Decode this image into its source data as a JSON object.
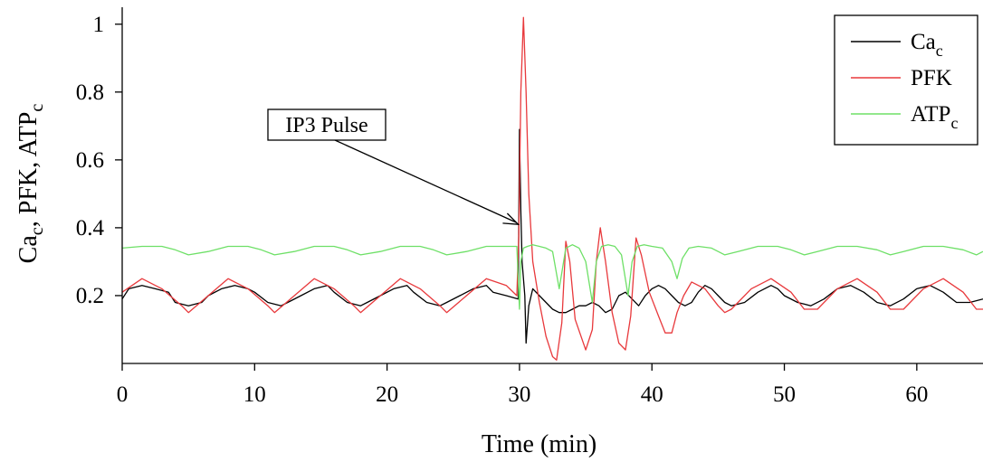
{
  "chart_data": {
    "type": "line",
    "xlabel": "Time (min)",
    "ylabel": {
      "parts": [
        {
          "t": "Ca"
        },
        {
          "t": "c",
          "sub": true
        },
        {
          "t": ", PFK, ATP"
        },
        {
          "t": "c",
          "sub": true
        }
      ]
    },
    "xlim": [
      0,
      65
    ],
    "ylim": [
      0,
      1.05
    ],
    "xticks": [
      0,
      10,
      20,
      30,
      40,
      50,
      60
    ],
    "xtick_labels": [
      "0",
      "10",
      "20",
      "30",
      "40",
      "50",
      "60"
    ],
    "yticks": [
      0.2,
      0.4,
      0.6,
      0.8,
      1.0
    ],
    "ytick_labels": [
      "0.2",
      "0.4",
      "0.6",
      "0.8",
      "1"
    ],
    "legend_position": "top-right",
    "annotation": {
      "text": "IP3 Pulse",
      "points_to": [
        29.9,
        0.41
      ]
    },
    "series": [
      {
        "name": "Ca_c",
        "name_parts": [
          {
            "t": "Ca"
          },
          {
            "t": "c",
            "sub": true
          }
        ],
        "color": "#000000",
        "x": [
          0,
          0.5,
          1.5,
          2.5,
          3.5,
          4.0,
          5.0,
          6.0,
          6.5,
          7.5,
          8.5,
          9.5,
          10.0,
          11.0,
          12.0,
          12.5,
          13.5,
          14.5,
          15.5,
          16.0,
          17.0,
          18.0,
          18.5,
          19.5,
          20.5,
          21.5,
          22.0,
          23.0,
          24.0,
          24.5,
          25.5,
          26.5,
          27.5,
          28.0,
          29.0,
          29.9,
          30.0,
          30.1,
          30.2,
          30.4,
          30.5,
          30.7,
          31.0,
          31.5,
          32.0,
          32.5,
          33.0,
          33.5,
          34.0,
          34.5,
          35.0,
          35.5,
          36.0,
          36.5,
          37.0,
          37.5,
          38.0,
          38.5,
          39.0,
          39.5,
          40.0,
          40.5,
          41.0,
          41.5,
          42.0,
          42.5,
          43.0,
          43.5,
          44.0,
          44.5,
          45.0,
          45.5,
          46.0,
          47.0,
          48.0,
          49.0,
          49.5,
          50.0,
          51.0,
          52.0,
          53.0,
          54.0,
          55.0,
          56.0,
          57.0,
          58.0,
          59.0,
          60.0,
          61.0,
          62.0,
          63.0,
          64.0,
          65.0
        ],
        "y": [
          0.19,
          0.22,
          0.23,
          0.22,
          0.21,
          0.18,
          0.17,
          0.18,
          0.2,
          0.22,
          0.23,
          0.22,
          0.21,
          0.18,
          0.17,
          0.18,
          0.2,
          0.22,
          0.23,
          0.21,
          0.18,
          0.17,
          0.18,
          0.2,
          0.22,
          0.23,
          0.21,
          0.18,
          0.17,
          0.18,
          0.2,
          0.22,
          0.23,
          0.21,
          0.2,
          0.19,
          0.69,
          0.45,
          0.3,
          0.2,
          0.06,
          0.17,
          0.22,
          0.2,
          0.18,
          0.16,
          0.15,
          0.15,
          0.16,
          0.17,
          0.17,
          0.18,
          0.17,
          0.15,
          0.16,
          0.2,
          0.21,
          0.19,
          0.17,
          0.2,
          0.22,
          0.23,
          0.22,
          0.2,
          0.18,
          0.17,
          0.18,
          0.21,
          0.23,
          0.22,
          0.2,
          0.18,
          0.17,
          0.18,
          0.21,
          0.23,
          0.22,
          0.2,
          0.18,
          0.17,
          0.19,
          0.22,
          0.23,
          0.21,
          0.18,
          0.17,
          0.19,
          0.22,
          0.23,
          0.21,
          0.18,
          0.18,
          0.19
        ]
      },
      {
        "name": "PFK",
        "name_parts": [
          {
            "t": "PFK"
          }
        ],
        "color": "#e8393c",
        "x": [
          0,
          1.5,
          3.0,
          4.5,
          5.0,
          6.5,
          8.0,
          9.5,
          11.0,
          11.5,
          13.0,
          14.5,
          16.0,
          17.5,
          18.0,
          19.5,
          21.0,
          22.5,
          24.0,
          24.5,
          26.0,
          27.5,
          29.0,
          29.8,
          29.95,
          30.1,
          30.3,
          30.5,
          30.7,
          31.0,
          31.5,
          32.0,
          32.5,
          32.8,
          33.2,
          33.5,
          33.8,
          34.2,
          35.0,
          35.5,
          35.8,
          36.1,
          36.5,
          37.0,
          37.5,
          38.0,
          38.4,
          38.8,
          39.2,
          39.8,
          40.5,
          41.0,
          41.5,
          41.9,
          42.4,
          43.0,
          44.0,
          45.0,
          45.5,
          46.0,
          47.5,
          49.0,
          50.5,
          51.5,
          52.5,
          54.0,
          55.5,
          57.0,
          58.0,
          59.0,
          60.5,
          62.0,
          63.5,
          64.5,
          65.0
        ],
        "y": [
          0.21,
          0.25,
          0.22,
          0.17,
          0.15,
          0.2,
          0.25,
          0.22,
          0.17,
          0.15,
          0.2,
          0.25,
          0.22,
          0.17,
          0.15,
          0.2,
          0.25,
          0.22,
          0.17,
          0.15,
          0.2,
          0.25,
          0.23,
          0.2,
          0.38,
          0.8,
          1.02,
          0.8,
          0.5,
          0.3,
          0.18,
          0.08,
          0.02,
          0.01,
          0.12,
          0.36,
          0.3,
          0.13,
          0.04,
          0.1,
          0.3,
          0.4,
          0.3,
          0.15,
          0.06,
          0.04,
          0.14,
          0.37,
          0.32,
          0.21,
          0.14,
          0.09,
          0.09,
          0.15,
          0.2,
          0.24,
          0.22,
          0.17,
          0.15,
          0.16,
          0.22,
          0.25,
          0.21,
          0.16,
          0.16,
          0.22,
          0.25,
          0.21,
          0.16,
          0.16,
          0.22,
          0.25,
          0.21,
          0.16,
          0.16
        ]
      },
      {
        "name": "ATP_c",
        "name_parts": [
          {
            "t": "ATP"
          },
          {
            "t": "c",
            "sub": true
          }
        ],
        "color": "#6ee067",
        "x": [
          0,
          1.5,
          3.0,
          4.0,
          5.0,
          6.5,
          8.0,
          9.5,
          10.5,
          11.5,
          13.0,
          14.5,
          16.0,
          17.0,
          18.0,
          19.5,
          21.0,
          22.5,
          23.5,
          24.5,
          26.0,
          27.5,
          29.0,
          29.8,
          30.0,
          30.1,
          30.3,
          30.6,
          31.0,
          31.5,
          32.0,
          32.5,
          33.0,
          33.5,
          34.0,
          34.5,
          35.0,
          35.5,
          35.8,
          36.2,
          36.7,
          37.2,
          37.7,
          38.2,
          38.5,
          38.9,
          39.4,
          40.0,
          40.8,
          41.5,
          41.9,
          42.3,
          42.8,
          43.5,
          44.5,
          45.0,
          45.5,
          46.5,
          48.0,
          49.5,
          50.5,
          51.5,
          52.5,
          54.0,
          55.5,
          57.0,
          58.0,
          59.0,
          60.5,
          62.0,
          63.5,
          64.5,
          65.0
        ],
        "y": [
          0.34,
          0.345,
          0.345,
          0.335,
          0.32,
          0.33,
          0.345,
          0.345,
          0.335,
          0.32,
          0.33,
          0.345,
          0.345,
          0.335,
          0.32,
          0.33,
          0.345,
          0.345,
          0.335,
          0.32,
          0.33,
          0.345,
          0.345,
          0.345,
          0.16,
          0.3,
          0.34,
          0.345,
          0.35,
          0.345,
          0.34,
          0.33,
          0.22,
          0.34,
          0.35,
          0.34,
          0.3,
          0.18,
          0.3,
          0.345,
          0.35,
          0.345,
          0.32,
          0.2,
          0.3,
          0.345,
          0.35,
          0.345,
          0.34,
          0.3,
          0.25,
          0.31,
          0.34,
          0.345,
          0.34,
          0.33,
          0.32,
          0.33,
          0.345,
          0.345,
          0.335,
          0.32,
          0.33,
          0.345,
          0.345,
          0.335,
          0.32,
          0.33,
          0.345,
          0.345,
          0.335,
          0.32,
          0.33
        ]
      }
    ]
  }
}
